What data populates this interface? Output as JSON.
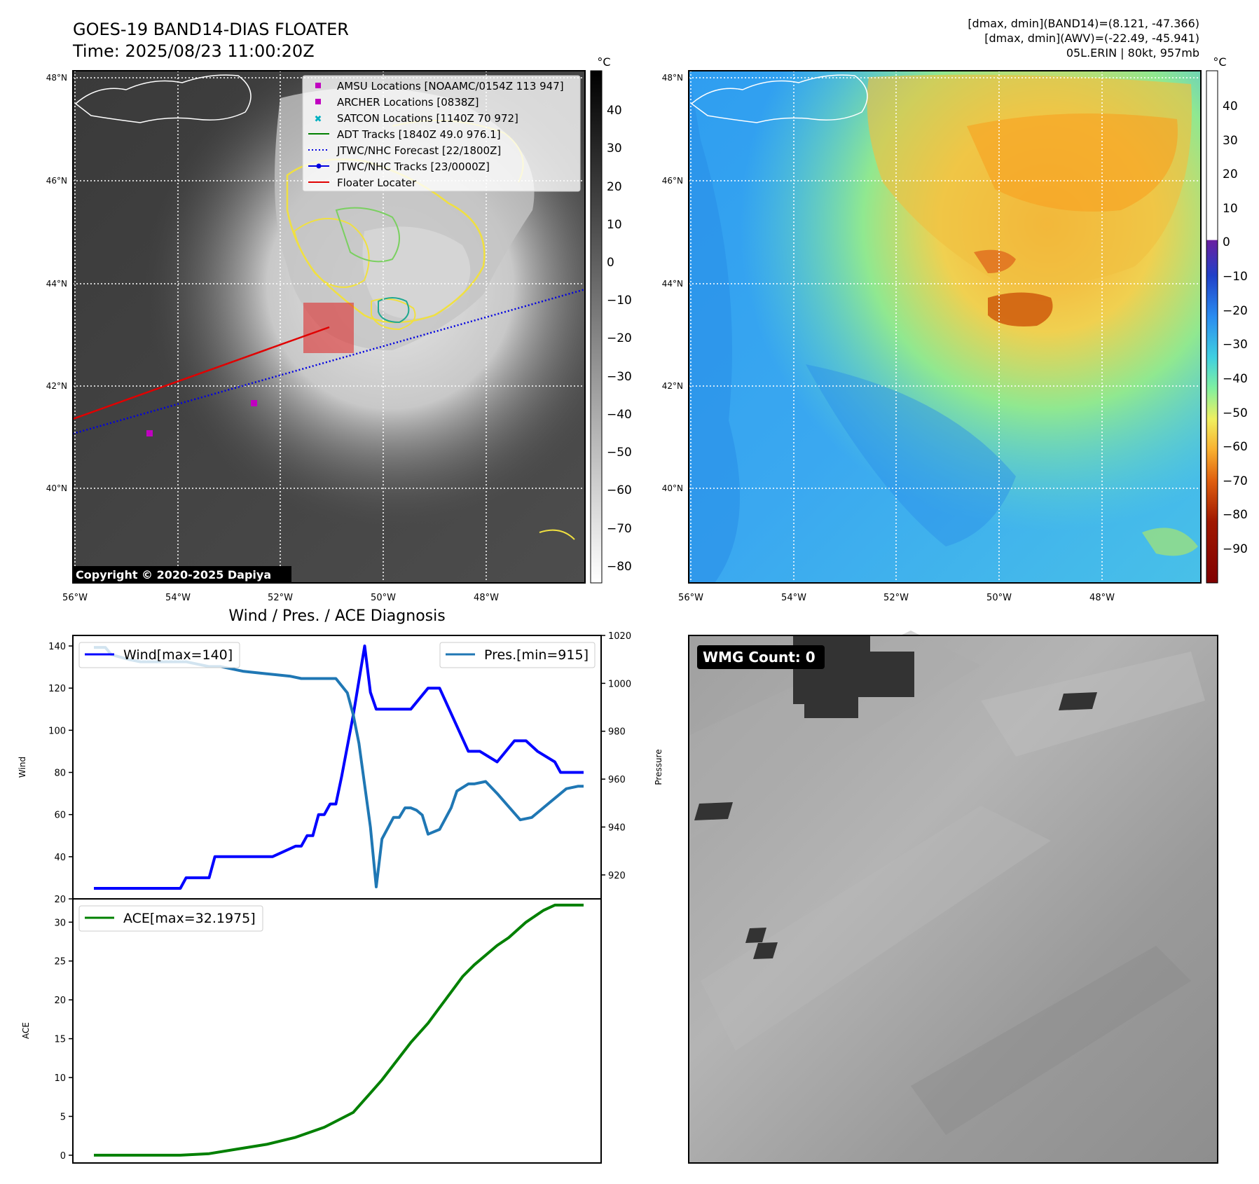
{
  "header": {
    "title_line1": "GOES-19 BAND14-DIAS FLOATER",
    "title_line2": "Time: 2025/08/23 11:00:20Z",
    "info_line1": "[dmax, dmin](BAND14)=(8.121, -47.366)",
    "info_line2": "[dmax, dmin](AWV)=(-22.49, -45.941)",
    "info_line3": "05L.ERIN | 80kt, 957mb"
  },
  "copyright": "Copyright © 2020-2025 Dapiya",
  "map_axes": {
    "lat_labels": [
      "48°N",
      "46°N",
      "44°N",
      "42°N",
      "40°N"
    ],
    "lon_labels": [
      "56°W",
      "54°W",
      "52°W",
      "50°W",
      "48°W"
    ],
    "unit": "°C"
  },
  "ir_colorbar": {
    "ticks": [
      "40",
      "30",
      "20",
      "10",
      "0",
      "−10",
      "−20",
      "−30",
      "−40",
      "−50",
      "−60",
      "−70",
      "−80"
    ]
  },
  "wv_colorbar": {
    "ticks": [
      "40",
      "30",
      "20",
      "10",
      "0",
      "−10",
      "−20",
      "−30",
      "−40",
      "−50",
      "−60",
      "−70",
      "−80",
      "−90"
    ]
  },
  "legend": {
    "items": [
      {
        "label": "AMSU Locations [NOAAMC/0154Z 113 947]",
        "color": "#c000c0",
        "marker": "square"
      },
      {
        "label": "ARCHER Locations [0838Z]",
        "color": "#c000c0",
        "marker": "square"
      },
      {
        "label": "SATCON Locations [1140Z 70 972]",
        "color": "#00b0c0",
        "marker": "x"
      },
      {
        "label": "ADT Tracks [1840Z 49.0 976.1]",
        "color": "#008000",
        "marker": "line"
      },
      {
        "label": "JTWC/NHC Forecast [22/1800Z]",
        "color": "#0000e0",
        "marker": "dotted"
      },
      {
        "label": "JTWC/NHC Tracks [23/0000Z]",
        "color": "#0000e0",
        "marker": "line-dot"
      },
      {
        "label": "Floater Locater",
        "color": "#e00000",
        "marker": "line"
      }
    ]
  },
  "wmg_label": "WMG Count: 0",
  "chart_data": [
    {
      "type": "line",
      "title": "Wind / Pres. / ACE Diagnosis",
      "ylabel": "Wind",
      "ylim": [
        20,
        145
      ],
      "y_ticks": [
        20,
        40,
        60,
        80,
        100,
        120,
        140
      ],
      "y2label": "Pressure",
      "y2lim": [
        910,
        1020
      ],
      "y2_ticks": [
        920,
        940,
        960,
        980,
        1000,
        1020
      ],
      "xlim": [
        0,
        85
      ],
      "series": [
        {
          "name": "Wind[max=140]",
          "color": "#0000ff",
          "axis": "left",
          "x": [
            0,
            5,
            10,
            12,
            15,
            16,
            20,
            21,
            25,
            30,
            31,
            35,
            36,
            37,
            38,
            39,
            40,
            41,
            42,
            43,
            45,
            47,
            48,
            49,
            50,
            55,
            58,
            60,
            65,
            66,
            67,
            70,
            73,
            75,
            77,
            80,
            81,
            85
          ],
          "values": [
            25,
            25,
            25,
            25,
            25,
            30,
            30,
            40,
            40,
            40,
            40,
            45,
            45,
            50,
            50,
            60,
            60,
            65,
            65,
            78,
            107,
            140,
            118,
            110,
            110,
            110,
            120,
            120,
            90,
            90,
            90,
            85,
            95,
            95,
            90,
            85,
            80,
            80
          ]
        },
        {
          "name": "Pres.[min=915]",
          "color": "#1f77b4",
          "axis": "right",
          "x": [
            0,
            2,
            3,
            6,
            8,
            10,
            14,
            16,
            20,
            22,
            26,
            30,
            34,
            36,
            38,
            40,
            42,
            44,
            45,
            46,
            48,
            49,
            50,
            52,
            53,
            54,
            55,
            56,
            57,
            58,
            60,
            62,
            63,
            65,
            66,
            68,
            70,
            74,
            76,
            78,
            80,
            82,
            84,
            85
          ],
          "values": [
            1015,
            1015,
            1012,
            1010,
            1009,
            1009,
            1009,
            1009,
            1007,
            1007,
            1005,
            1004,
            1003,
            1002,
            1002,
            1002,
            1002,
            996,
            987,
            975,
            940,
            915,
            935,
            944,
            944,
            948,
            948,
            947,
            945,
            937,
            939,
            948,
            955,
            958,
            958,
            959,
            954,
            943,
            944,
            948,
            952,
            956,
            957,
            957
          ]
        }
      ]
    },
    {
      "type": "line",
      "ylabel": "ACE",
      "ylim": [
        -1,
        33
      ],
      "y_ticks": [
        0,
        5,
        10,
        15,
        20,
        25,
        30
      ],
      "xlim": [
        0,
        85
      ],
      "series": [
        {
          "name": "ACE[max=32.1975]",
          "color": "#008000",
          "x": [
            0,
            5,
            10,
            15,
            20,
            25,
            30,
            35,
            40,
            45,
            48,
            50,
            55,
            58,
            60,
            62,
            64,
            66,
            70,
            72,
            75,
            78,
            80,
            82,
            85
          ],
          "values": [
            0,
            0,
            0,
            0,
            0.2,
            0.8,
            1.4,
            2.3,
            3.6,
            5.5,
            8.0,
            9.7,
            14.5,
            17,
            19,
            21,
            23,
            24.5,
            27,
            28,
            30,
            31.5,
            32.1975,
            32.1975,
            32.1975
          ]
        }
      ]
    }
  ]
}
